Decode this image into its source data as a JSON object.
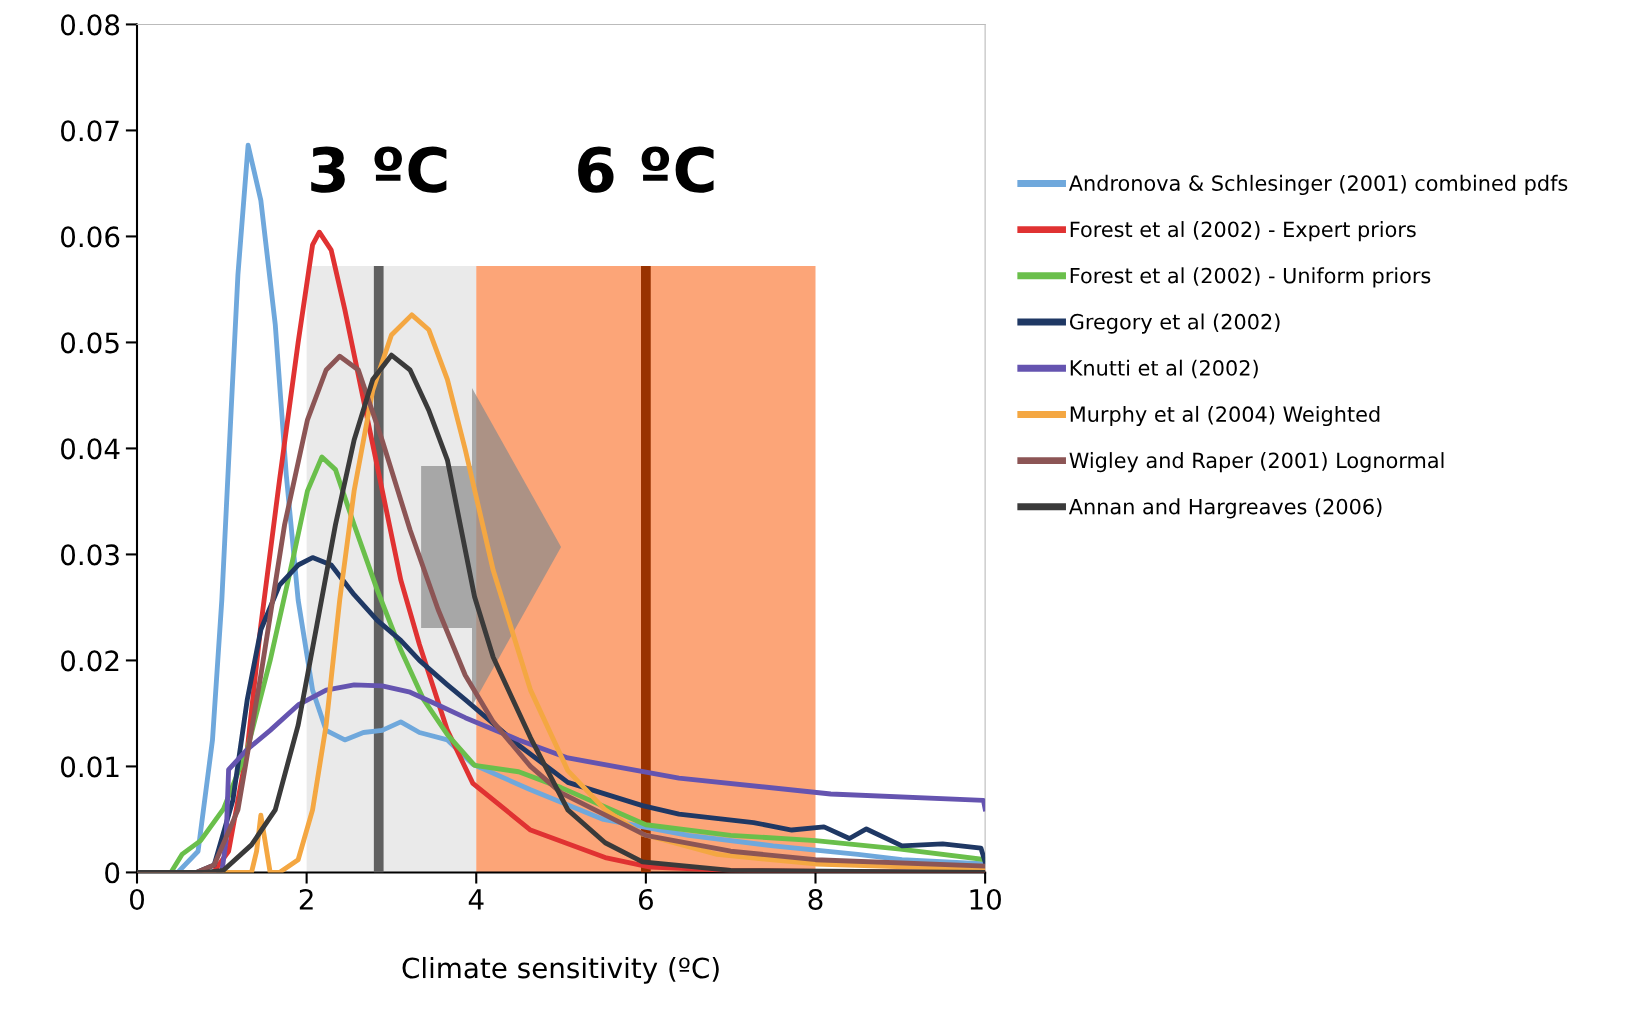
{
  "chart_data": {
    "type": "line",
    "xlabel": "Climate sensitivity (ºC)",
    "xlim": [
      0,
      10
    ],
    "xticks": [
      0,
      2,
      4,
      6,
      8,
      10
    ],
    "ylim": [
      0,
      0.08
    ],
    "yticks": [
      0,
      0.01,
      0.02,
      0.03,
      0.04,
      0.05,
      0.06,
      0.07,
      0.08
    ],
    "grid": false,
    "legend": "right",
    "marker": "none",
    "line_style": "solid",
    "series": [
      {
        "name": "Andronova & Schlesinger (2001) combined pdfs",
        "color": "#6fa8dc",
        "x": [
          0,
          0.48,
          0.72,
          0.89,
          1.0,
          1.11,
          1.19,
          1.31,
          1.46,
          1.63,
          1.76,
          1.9,
          2.07,
          2.23,
          2.45,
          2.67,
          2.89,
          3.11,
          3.33,
          3.66,
          3.96,
          4.64,
          5.5,
          6.5,
          7.5,
          8.5,
          9.02,
          10
        ],
        "values": [
          0,
          0,
          0.002,
          0.0125,
          0.0257,
          0.0436,
          0.0564,
          0.0686,
          0.0634,
          0.0517,
          0.0375,
          0.0257,
          0.0172,
          0.0134,
          0.0125,
          0.0132,
          0.0134,
          0.0142,
          0.0132,
          0.0125,
          0.0102,
          0.0078,
          0.005,
          0.0035,
          0.0025,
          0.0017,
          0.0012,
          0.0008
        ]
      },
      {
        "name": "Forest et al (2002) - Expert priors",
        "color": "#e03232",
        "x": [
          0,
          0.9,
          1.08,
          1.3,
          1.46,
          1.68,
          1.9,
          2.07,
          2.15,
          2.29,
          2.45,
          2.67,
          2.89,
          3.11,
          3.33,
          3.66,
          3.96,
          4.64,
          5.52,
          6.05,
          7,
          8,
          10
        ],
        "values": [
          0,
          0,
          0.002,
          0.0116,
          0.0233,
          0.037,
          0.05,
          0.0592,
          0.0604,
          0.0587,
          0.0531,
          0.0446,
          0.0361,
          0.0276,
          0.0215,
          0.0134,
          0.0084,
          0.004,
          0.0014,
          0.0005,
          0.0002,
          0.0001,
          0
        ]
      },
      {
        "name": "Forest et al (2002) - Uniform priors",
        "color": "#6abf4b",
        "x": [
          0,
          0.4,
          0.53,
          0.75,
          1.02,
          1.3,
          1.57,
          1.85,
          2.01,
          2.18,
          2.34,
          2.56,
          2.83,
          3.11,
          3.38,
          3.66,
          3.98,
          4.5,
          5,
          6,
          7,
          8,
          9,
          10
        ],
        "values": [
          0,
          0,
          0.0017,
          0.003,
          0.006,
          0.0116,
          0.02,
          0.03,
          0.036,
          0.0392,
          0.038,
          0.0328,
          0.0267,
          0.021,
          0.0163,
          0.013,
          0.0101,
          0.0095,
          0.008,
          0.0045,
          0.0035,
          0.003,
          0.0022,
          0.0012
        ]
      },
      {
        "name": "Gregory et al (2002)",
        "color": "#1f3864",
        "x": [
          0,
          0.7,
          0.91,
          1.13,
          1.3,
          1.46,
          1.68,
          1.9,
          2.07,
          2.29,
          2.56,
          2.83,
          3.11,
          3.33,
          3.66,
          3.87,
          4.5,
          5.08,
          5.96,
          6.39,
          7.27,
          7.72,
          8.1,
          8.4,
          8.6,
          9.02,
          9.5,
          9.95,
          10
        ],
        "values": [
          0,
          0,
          0.0007,
          0.0068,
          0.0163,
          0.0229,
          0.0271,
          0.029,
          0.0297,
          0.029,
          0.0262,
          0.0238,
          0.0219,
          0.02,
          0.0177,
          0.0163,
          0.012,
          0.0085,
          0.0063,
          0.0055,
          0.0047,
          0.004,
          0.0043,
          0.0032,
          0.0041,
          0.0025,
          0.0027,
          0.0023,
          0.001
        ]
      },
      {
        "name": "Knutti et al (2002)",
        "color": "#6554b0",
        "x": [
          0,
          1.0,
          1.05,
          1.08,
          1.3,
          1.57,
          1.9,
          2.23,
          2.56,
          2.89,
          3.22,
          3.55,
          3.87,
          4.5,
          5.08,
          6.39,
          8.18,
          9.98,
          10
        ],
        "values": [
          0,
          0,
          0.003,
          0.0097,
          0.0116,
          0.0134,
          0.0158,
          0.0172,
          0.0177,
          0.0176,
          0.017,
          0.0158,
          0.0146,
          0.0125,
          0.0108,
          0.0089,
          0.0074,
          0.0068,
          0.006
        ]
      },
      {
        "name": "Murphy et al (2004) Weighted",
        "color": "#f4a742",
        "x": [
          0,
          1.35,
          1.41,
          1.46,
          1.57,
          1.68,
          1.9,
          2.07,
          2.23,
          2.39,
          2.56,
          2.78,
          3.0,
          3.24,
          3.44,
          3.66,
          3.87,
          4.2,
          4.64,
          5.08,
          5.52,
          5.96,
          6.84,
          8,
          10
        ],
        "values": [
          0,
          0,
          0.002,
          0.0054,
          0,
          0,
          0.0012,
          0.0059,
          0.0139,
          0.0257,
          0.036,
          0.0455,
          0.0507,
          0.0526,
          0.0512,
          0.0465,
          0.0399,
          0.0285,
          0.0172,
          0.0096,
          0.0059,
          0.0036,
          0.0017,
          0.0008,
          0.0003
        ]
      },
      {
        "name": "Wigley and Raper (2001) Lognormal",
        "color": "#8c5555",
        "x": [
          0,
          0.7,
          0.91,
          1.19,
          1.46,
          1.74,
          2.01,
          2.23,
          2.39,
          2.61,
          2.89,
          3.22,
          3.55,
          3.87,
          4.2,
          4.64,
          5,
          6,
          7,
          8,
          10
        ],
        "values": [
          0,
          0,
          0.0007,
          0.0059,
          0.0186,
          0.0328,
          0.0427,
          0.0474,
          0.0487,
          0.0474,
          0.0408,
          0.0323,
          0.0248,
          0.0186,
          0.0142,
          0.01,
          0.0075,
          0.0035,
          0.002,
          0.0012,
          0.0006
        ]
      },
      {
        "name": "Annan and Hargreaves (2006)",
        "color": "#3a3a3a",
        "x": [
          0,
          0.8,
          1.02,
          1.35,
          1.63,
          1.9,
          2.12,
          2.34,
          2.56,
          2.78,
          3.0,
          3.22,
          3.44,
          3.66,
          3.98,
          4.2,
          4.64,
          5.08,
          5.52,
          5.96,
          7,
          10
        ],
        "values": [
          0,
          0,
          0.0002,
          0.0026,
          0.0059,
          0.0139,
          0.0233,
          0.0328,
          0.0408,
          0.0465,
          0.0488,
          0.0474,
          0.0436,
          0.0389,
          0.026,
          0.0203,
          0.0127,
          0.0059,
          0.0028,
          0.001,
          0.0002,
          0
        ]
      }
    ],
    "bands": [
      {
        "axis": "x",
        "from": 2,
        "to": 4,
        "color": "#e6e6e6"
      },
      {
        "axis": "x",
        "from": 4,
        "to": 8,
        "color": "#fb9560"
      }
    ],
    "ref_lines": [
      {
        "axis": "x",
        "value": 2.85,
        "label": "3 ºC",
        "color": "#606060"
      },
      {
        "axis": "x",
        "value": 6,
        "label": "6 ºC",
        "color": "#993300"
      }
    ]
  }
}
